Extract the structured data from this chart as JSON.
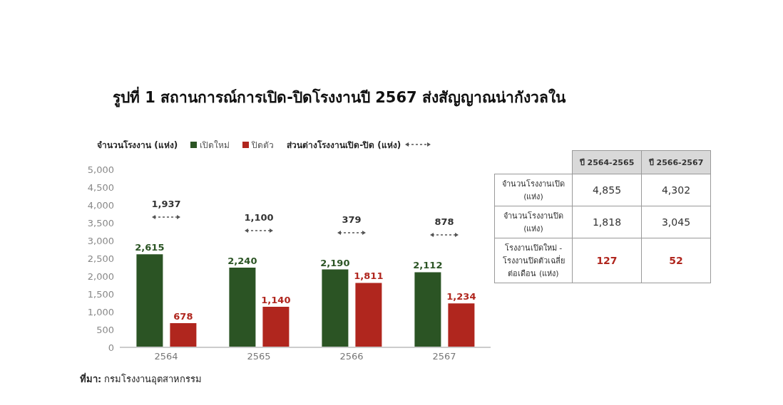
{
  "chart_data": [
    {
      "type": "bar",
      "title": "รูปที่ 1 สถานการณ์การเปิด-ปิดโรงงานปี 2567 ส่งสัญญาณน่ากังวลใน",
      "ylabel": "จำนวนโรงงาน (แห่ง)",
      "categories": [
        "2564",
        "2565",
        "2566",
        "2567"
      ],
      "series": [
        {
          "name": "เปิดใหม่",
          "color": "#2b5424",
          "values": [
            2615,
            2240,
            2190,
            2112
          ],
          "value_labels": [
            "2,615",
            "2,240",
            "2,190",
            "2,112"
          ]
        },
        {
          "name": "ปิดตัว",
          "color": "#b0261e",
          "values": [
            678,
            1140,
            1811,
            1234
          ],
          "value_labels": [
            "678",
            "1,140",
            "1,811",
            "1,234"
          ]
        }
      ],
      "ylim": [
        0,
        5000
      ],
      "yticks": [
        0,
        500,
        {
          "value": 1000,
          "label": "1,000"
        },
        {
          "value": 1500,
          "label": "1,500"
        },
        {
          "value": 2000,
          "label": "2,000"
        },
        {
          "value": 2500,
          "label": "2,500"
        },
        {
          "value": 3000,
          "label": "3,000"
        },
        {
          "value": 3500,
          "label": "3,500"
        },
        {
          "value": 4000,
          "label": "4,000"
        },
        {
          "value": 4500,
          "label": "4,500"
        },
        {
          "value": 5000,
          "label": "5,000"
        }
      ],
      "grid": false,
      "legend": "top",
      "annotations": [
        "ส่วนต่างโรงงานเปิด-ปิด (แห่ง)",
        "1,937",
        "1,100",
        "379",
        "878",
        "ที่มา: กรมโรงงานอุตสาหกรรม"
      ]
    },
    {
      "type": "other",
      "categories": [
        "ปี 2564-2565",
        "ปี 2566-2567"
      ],
      "y_categories": [
        "จำนวนโรงงานเปิด (แห่ง)",
        "จำนวนโรงงานปิด (แห่ง)",
        "โรงงานเปิดใหม่ - โรงงานปิดตัวเฉลี่ยต่อเดือน (แห่ง)"
      ],
      "cell_labels": [
        [
          "4,855",
          "4,302"
        ],
        [
          "1,818",
          "3,045"
        ],
        [
          "127",
          "52"
        ]
      ]
    }
  ]
}
